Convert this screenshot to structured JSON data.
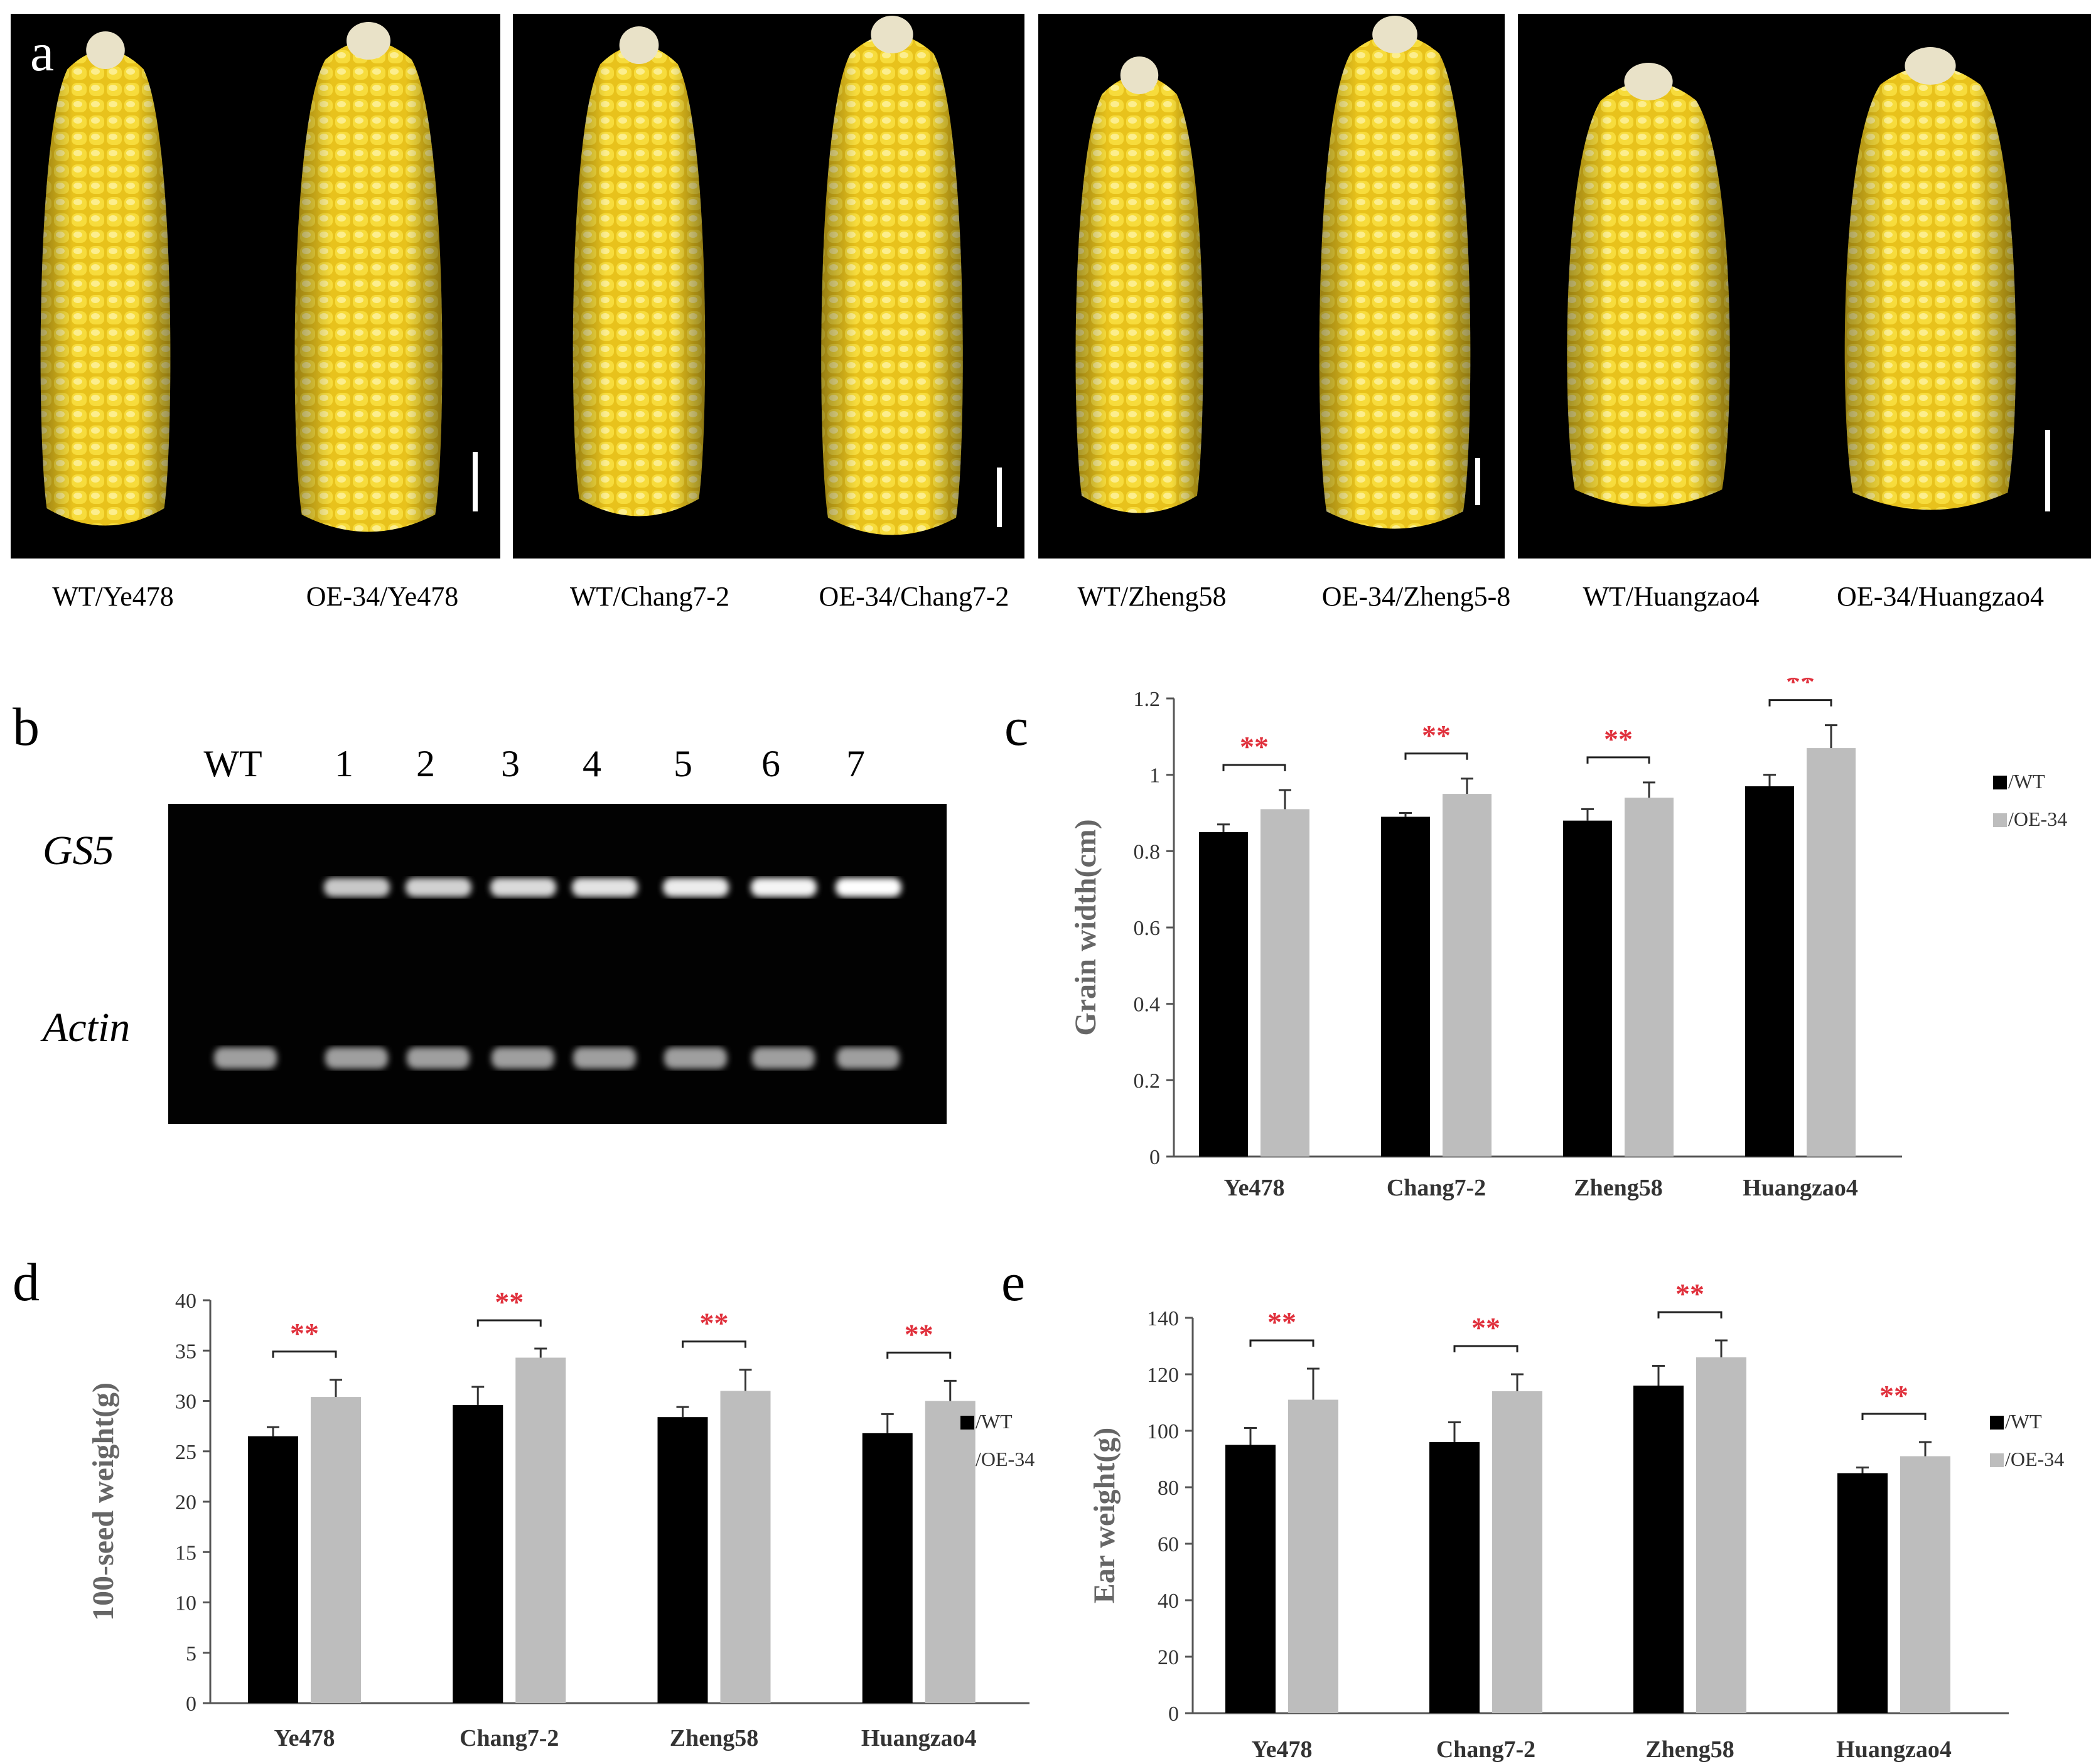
{
  "panel_letters": {
    "a": "a",
    "b": "b",
    "c": "c",
    "d": "d",
    "e": "e"
  },
  "panel_a": {
    "captions": [
      "WT/Ye478",
      "OE-34/Ye478",
      "WT/Chang7-2",
      "OE-34/Chang7-2",
      "WT/Zheng58",
      "OE-34/Zheng5-8",
      "WT/Huangzao4",
      "OE-34/Huangzao4"
    ],
    "colors": {
      "kernel": "#f2d22a",
      "kernel_light": "#fbeb8a",
      "background": "#000000",
      "scale_bar": "#ffffff"
    }
  },
  "panel_b": {
    "lanes": [
      "WT",
      "1",
      "2",
      "3",
      "4",
      "5",
      "6",
      "7"
    ],
    "rows": [
      "GS5",
      "Actin"
    ],
    "gs5_present": [
      false,
      true,
      true,
      true,
      true,
      true,
      true,
      true
    ],
    "actin_present": [
      true,
      true,
      true,
      true,
      true,
      true,
      true,
      true
    ]
  },
  "legend_wt": "/WT",
  "legend_oe": "/OE-34",
  "significance_mark": "**",
  "colors": {
    "wt": "#000000",
    "oe": "#bdbdbd",
    "significance": "#e0303c"
  },
  "chart_data": [
    {
      "panel": "c",
      "type": "bar",
      "categories": [
        "Ye478",
        "Chang7-2",
        "Zheng58",
        "Huangzao4"
      ],
      "series": [
        {
          "name": "/WT",
          "values": [
            0.85,
            0.89,
            0.88,
            0.97
          ],
          "errors": [
            0.02,
            0.01,
            0.03,
            0.03
          ]
        },
        {
          "name": "/OE-34",
          "values": [
            0.91,
            0.95,
            0.94,
            1.07
          ],
          "errors": [
            0.05,
            0.04,
            0.04,
            0.06
          ]
        }
      ],
      "ylabel": "Grain width(cm)",
      "xlabel": "",
      "ylim": [
        0,
        1.2
      ],
      "yticks": [
        "0",
        "0.2",
        "0.4",
        "0.6",
        "0.8",
        "1",
        "1.2"
      ],
      "legend_position": "right"
    },
    {
      "panel": "d",
      "type": "bar",
      "categories": [
        "Ye478",
        "Chang7-2",
        "Zheng58",
        "Huangzao4"
      ],
      "series": [
        {
          "name": "/WT",
          "values": [
            26.5,
            29.6,
            28.4,
            26.8
          ],
          "errors": [
            0.9,
            1.8,
            1.0,
            1.9
          ]
        },
        {
          "name": "/OE-34",
          "values": [
            30.4,
            34.3,
            31.0,
            30.0
          ],
          "errors": [
            1.7,
            0.9,
            2.1,
            2.0
          ]
        }
      ],
      "ylabel": "100-seed weight(g)",
      "xlabel": "",
      "ylim": [
        0,
        40
      ],
      "yticks": [
        "0",
        "5",
        "10",
        "15",
        "20",
        "25",
        "30",
        "35",
        "40"
      ],
      "legend_position": "right"
    },
    {
      "panel": "e",
      "type": "bar",
      "categories": [
        "Ye478",
        "Chang7-2",
        "Zheng58",
        "Huangzao4"
      ],
      "series": [
        {
          "name": "/WT",
          "values": [
            95,
            96,
            116,
            85
          ],
          "errors": [
            6,
            7,
            7,
            2
          ]
        },
        {
          "name": "/OE-34",
          "values": [
            111,
            114,
            126,
            91
          ],
          "errors": [
            11,
            6,
            6,
            5
          ]
        }
      ],
      "ylabel": "Ear weight(g)",
      "xlabel": "",
      "ylim": [
        0,
        140
      ],
      "yticks": [
        "0",
        "20",
        "40",
        "60",
        "80",
        "100",
        "120",
        "140"
      ],
      "legend_position": "right"
    }
  ]
}
